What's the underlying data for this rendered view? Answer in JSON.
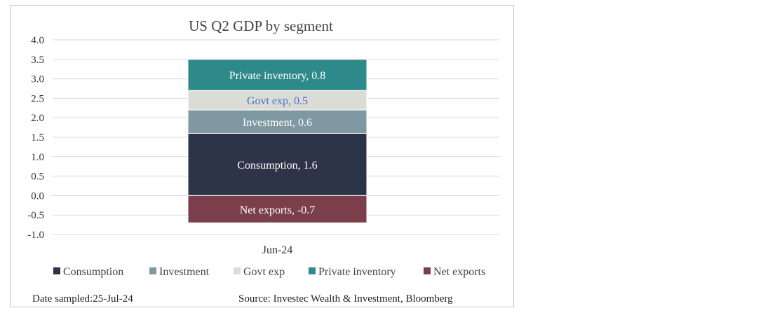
{
  "chart_data": {
    "type": "bar",
    "stacked": true,
    "title": "US Q2 GDP by segment",
    "categories": [
      "Jun-24"
    ],
    "ylim": [
      -1.0,
      4.0
    ],
    "yticks": [
      "4.0",
      "3.5",
      "3.0",
      "2.5",
      "2.0",
      "1.5",
      "1.0",
      "0.5",
      "0.0",
      "-0.5",
      "-1.0"
    ],
    "grid": true,
    "legend_position": "bottom",
    "series": [
      {
        "name": "Consumption",
        "values": [
          1.6
        ],
        "color": "#2e3447",
        "label": "Consumption, 1.6",
        "label_color": "#ffffff"
      },
      {
        "name": "Investment",
        "values": [
          0.6
        ],
        "color": "#7f98a2",
        "label": "Investment, 0.6",
        "label_color": "#ffffff"
      },
      {
        "name": "Govt exp",
        "values": [
          0.5
        ],
        "color": "#dcdcd6",
        "label": "Govt exp, 0.5",
        "label_color": "#4472c4"
      },
      {
        "name": "Private inventory",
        "values": [
          0.8
        ],
        "color": "#2e8a8a",
        "label": "Private inventory, 0.8",
        "label_color": "#ffffff"
      },
      {
        "name": "Net exports",
        "values": [
          -0.7
        ],
        "color": "#7b3f4c",
        "label": "Net exports, -0.7",
        "label_color": "#ffffff"
      }
    ]
  },
  "footer": {
    "date": "Date sampled:25-Jul-24",
    "source": "Source: Investec Wealth & Investment, Bloomberg"
  }
}
